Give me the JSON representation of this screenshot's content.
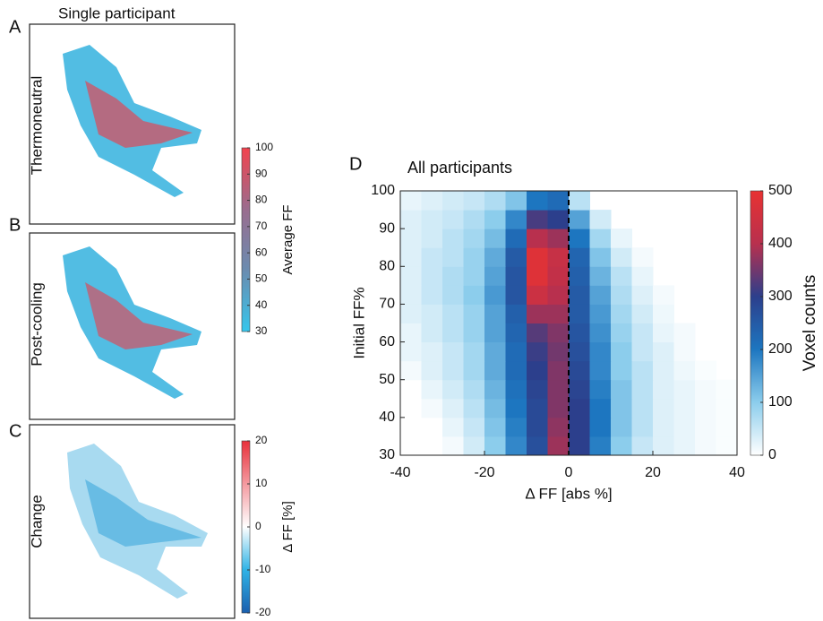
{
  "left": {
    "title": "Single participant",
    "panels": [
      {
        "letter": "A",
        "label": "Thermoneutral"
      },
      {
        "letter": "B",
        "label": "Post-cooling"
      },
      {
        "letter": "C",
        "label": "Change"
      }
    ],
    "colorbars": [
      {
        "label": "Average FF",
        "lim": [
          30,
          100
        ],
        "ticks": [
          30,
          40,
          50,
          60,
          70,
          80,
          90,
          100
        ],
        "colors": [
          "#36c6ec",
          "#6a8cb0",
          "#9a6c8e",
          "#f2434e"
        ]
      },
      {
        "label": "Δ FF [%]",
        "lim": [
          -20,
          20
        ],
        "ticks": [
          -20,
          -10,
          0,
          10,
          20
        ],
        "colors": [
          "#1b5fae",
          "#2fb3e6",
          "#ffffff",
          "#f49aa0",
          "#e8303a"
        ]
      }
    ]
  },
  "chart_data": {
    "type": "heatmap",
    "panel_letter": "D",
    "title": "All participants",
    "xlabel": "Δ FF [abs %]",
    "ylabel": "Initial FF%",
    "colorbar_label": "Voxel counts",
    "xlim": [
      -40,
      40
    ],
    "xticks": [
      -40,
      -20,
      0,
      20,
      40
    ],
    "ylim": [
      30,
      100
    ],
    "yticks": [
      30,
      40,
      50,
      60,
      70,
      80,
      90,
      100
    ],
    "zlim": [
      0,
      500
    ],
    "zticks": [
      0,
      100,
      200,
      300,
      400,
      500
    ],
    "colorscale": [
      "#ffffff",
      "#8ccdec",
      "#1d76c0",
      "#2c3f8c",
      "#b8304e",
      "#e83232"
    ],
    "vline": 0,
    "xbins": [
      -40,
      -35,
      -30,
      -25,
      -20,
      -15,
      -10,
      -5,
      0,
      5,
      10,
      15,
      20,
      25,
      30,
      35,
      40
    ],
    "ybins": [
      30,
      35,
      40,
      45,
      50,
      55,
      60,
      65,
      70,
      75,
      80,
      85,
      90,
      95,
      100
    ],
    "counts": [
      [
        0,
        0,
        10,
        40,
        100,
        180,
        270,
        380,
        300,
        190,
        100,
        50,
        30,
        20,
        10,
        5
      ],
      [
        0,
        0,
        20,
        50,
        110,
        190,
        280,
        370,
        300,
        200,
        110,
        60,
        30,
        20,
        10,
        5
      ],
      [
        0,
        10,
        30,
        60,
        120,
        200,
        280,
        360,
        300,
        200,
        110,
        60,
        30,
        20,
        10,
        5
      ],
      [
        0,
        20,
        40,
        70,
        130,
        210,
        290,
        360,
        290,
        190,
        110,
        60,
        30,
        20,
        10,
        5
      ],
      [
        10,
        30,
        50,
        80,
        140,
        220,
        300,
        360,
        280,
        180,
        100,
        60,
        30,
        15,
        5,
        0
      ],
      [
        20,
        30,
        50,
        80,
        140,
        220,
        310,
        350,
        270,
        180,
        100,
        50,
        30,
        10,
        0,
        0
      ],
      [
        20,
        40,
        60,
        90,
        150,
        230,
        330,
        360,
        260,
        170,
        90,
        50,
        20,
        10,
        0,
        0
      ],
      [
        30,
        40,
        60,
        90,
        150,
        240,
        380,
        380,
        250,
        160,
        80,
        40,
        15,
        0,
        0,
        0
      ],
      [
        30,
        50,
        70,
        100,
        160,
        260,
        440,
        400,
        250,
        150,
        70,
        30,
        10,
        0,
        0,
        0
      ],
      [
        30,
        50,
        70,
        90,
        150,
        260,
        480,
        420,
        240,
        130,
        60,
        20,
        0,
        0,
        0,
        0
      ],
      [
        30,
        50,
        60,
        90,
        140,
        250,
        480,
        430,
        230,
        110,
        40,
        10,
        0,
        0,
        0,
        0
      ],
      [
        30,
        40,
        60,
        80,
        120,
        220,
        400,
        380,
        200,
        80,
        20,
        0,
        0,
        0,
        0,
        0
      ],
      [
        30,
        40,
        50,
        70,
        100,
        180,
        320,
        300,
        150,
        40,
        0,
        0,
        0,
        0,
        0,
        0
      ],
      [
        20,
        30,
        40,
        50,
        70,
        110,
        200,
        220,
        60,
        0,
        0,
        0,
        0,
        0,
        0,
        0
      ]
    ]
  }
}
